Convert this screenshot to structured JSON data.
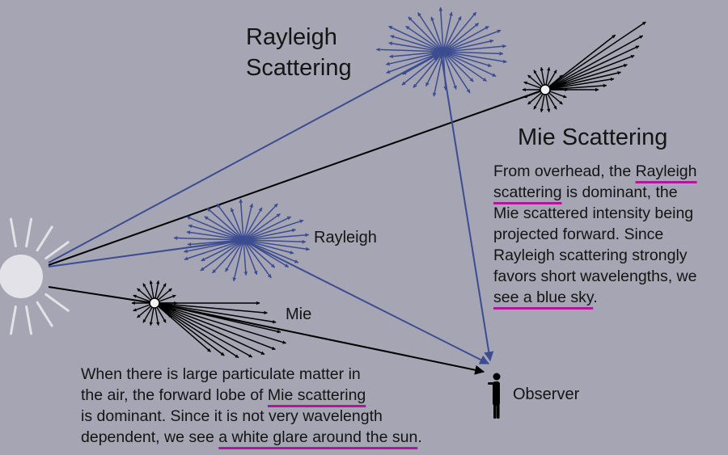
{
  "colors": {
    "background": "#a5a5b4",
    "rayleigh_rays": "#3c4c90",
    "mie_rays": "#000000",
    "sun": "#e2e2e8",
    "underline": "#b0179c",
    "text": "#141414"
  },
  "labels": {
    "rayleigh_title_line1": "Rayleigh",
    "rayleigh_title_line2": "Scattering",
    "mie_title": "Mie Scattering",
    "rayleigh_small": "Rayleigh",
    "mie_small": "Mie",
    "observer": "Observer"
  },
  "overhead_text": {
    "l1_pre": "From overhead, the ",
    "l1_u": "Rayleigh",
    "l2_u": "scattering",
    "l2_post": " is dominant, the",
    "l3": "Mie scattered intensity being",
    "l4": "projected forward. Since",
    "l5": "Rayleigh scattering strongly",
    "l6": "favors short wavelengths, we",
    "l7_u": "see a blue sky",
    "l7_post": "."
  },
  "lowangle_text": {
    "l1": "When there is large particulate matter in",
    "l2_pre": "the air, the forward lobe of ",
    "l2_u": "Mie scattering",
    "l3": "is dominant. Since it is not very wavelength",
    "l4_pre": "dependent, we see ",
    "l4_u": "a white glare around the sun",
    "l4_post": "."
  },
  "icons": {
    "sun": "sun-icon",
    "observer": "observer-figure-icon"
  }
}
